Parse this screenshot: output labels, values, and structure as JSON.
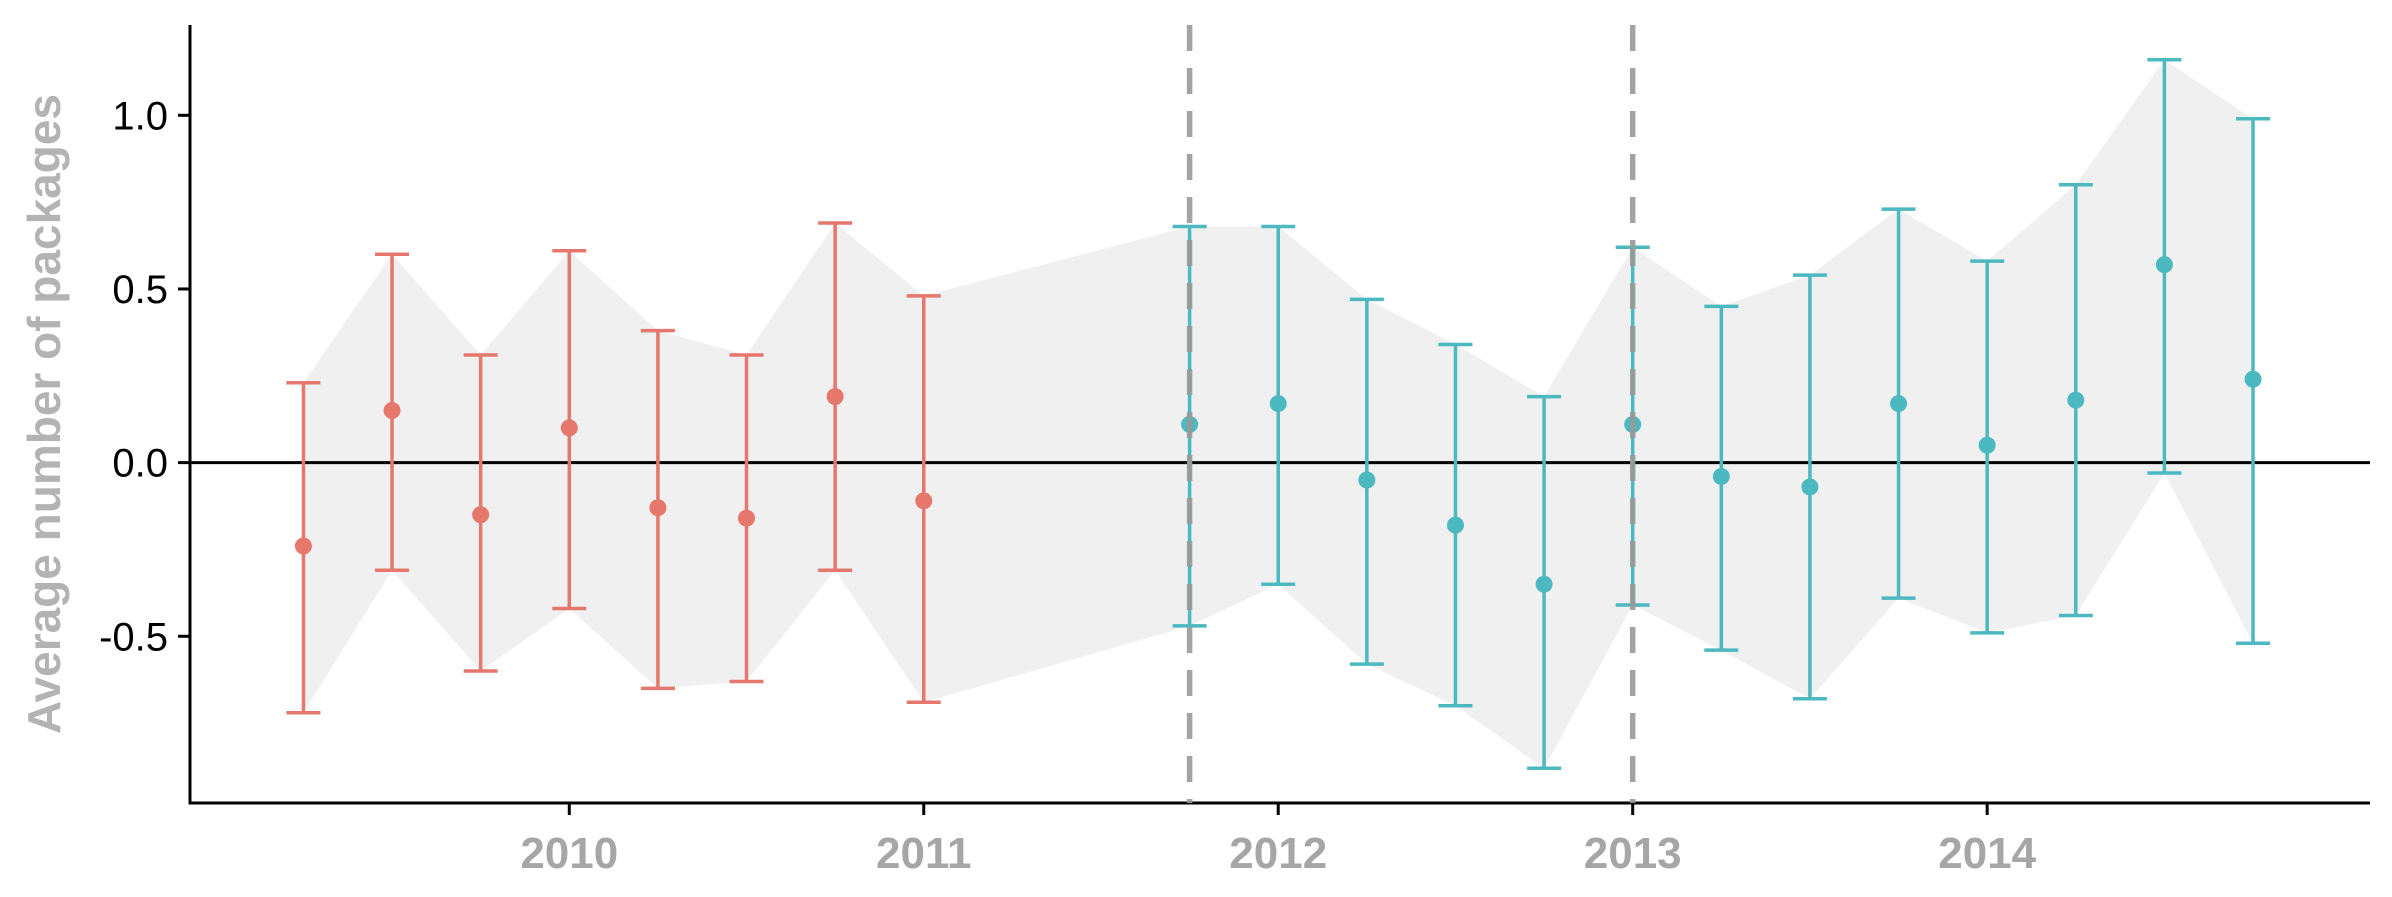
{
  "chart_data": {
    "type": "scatter",
    "title": "",
    "xlabel": "",
    "ylabel": "Average number of packages",
    "x_ticks": [
      {
        "value": 2010,
        "label": "2010"
      },
      {
        "value": 2011,
        "label": "2011"
      },
      {
        "value": 2012,
        "label": "2012"
      },
      {
        "value": 2013,
        "label": "2013"
      },
      {
        "value": 2014,
        "label": "2014"
      }
    ],
    "y_ticks": [
      {
        "value": -0.5,
        "label": "-0.5"
      },
      {
        "value": 0.0,
        "label": "0.0"
      },
      {
        "value": 0.5,
        "label": "0.5"
      },
      {
        "value": 1.0,
        "label": "1.0"
      }
    ],
    "xlim": [
      2008.93,
      2015.08
    ],
    "ylim": [
      -0.98,
      1.26
    ],
    "grid": false,
    "legend": "none",
    "reference_line_y": 0,
    "vertical_lines_x": [
      2011.75,
      2013.0
    ],
    "series": [
      {
        "color": "#E5776D",
        "points": [
          {
            "x": 2009.25,
            "y": -0.24,
            "lower": -0.72,
            "upper": 0.23
          },
          {
            "x": 2009.5,
            "y": 0.15,
            "lower": -0.31,
            "upper": 0.6
          },
          {
            "x": 2009.75,
            "y": -0.15,
            "lower": -0.6,
            "upper": 0.31
          },
          {
            "x": 2010.0,
            "y": 0.1,
            "lower": -0.42,
            "upper": 0.61
          },
          {
            "x": 2010.25,
            "y": -0.13,
            "lower": -0.65,
            "upper": 0.38
          },
          {
            "x": 2010.5,
            "y": -0.16,
            "lower": -0.63,
            "upper": 0.31
          },
          {
            "x": 2010.75,
            "y": 0.19,
            "lower": -0.31,
            "upper": 0.69
          },
          {
            "x": 2011.0,
            "y": -0.11,
            "lower": -0.69,
            "upper": 0.48
          }
        ]
      },
      {
        "color": "#4CB8BF",
        "points": [
          {
            "x": 2011.75,
            "y": 0.11,
            "lower": -0.47,
            "upper": 0.68
          },
          {
            "x": 2012.0,
            "y": 0.17,
            "lower": -0.35,
            "upper": 0.68
          },
          {
            "x": 2012.25,
            "y": -0.05,
            "lower": -0.58,
            "upper": 0.47
          },
          {
            "x": 2012.5,
            "y": -0.18,
            "lower": -0.7,
            "upper": 0.34
          },
          {
            "x": 2012.75,
            "y": -0.35,
            "lower": -0.88,
            "upper": 0.19
          },
          {
            "x": 2013.0,
            "y": 0.11,
            "lower": -0.41,
            "upper": 0.62
          },
          {
            "x": 2013.25,
            "y": -0.04,
            "lower": -0.54,
            "upper": 0.45
          },
          {
            "x": 2013.5,
            "y": -0.07,
            "lower": -0.68,
            "upper": 0.54
          },
          {
            "x": 2013.75,
            "y": 0.17,
            "lower": -0.39,
            "upper": 0.73
          },
          {
            "x": 2014.0,
            "y": 0.05,
            "lower": -0.49,
            "upper": 0.58
          },
          {
            "x": 2014.25,
            "y": 0.18,
            "lower": -0.44,
            "upper": 0.8
          },
          {
            "x": 2014.5,
            "y": 0.57,
            "lower": -0.03,
            "upper": 1.16
          },
          {
            "x": 2014.75,
            "y": 0.24,
            "lower": -0.52,
            "upper": 0.99
          }
        ]
      }
    ],
    "ribbon_color": "#F0F0F0",
    "vertical_line_color": "#999999"
  }
}
